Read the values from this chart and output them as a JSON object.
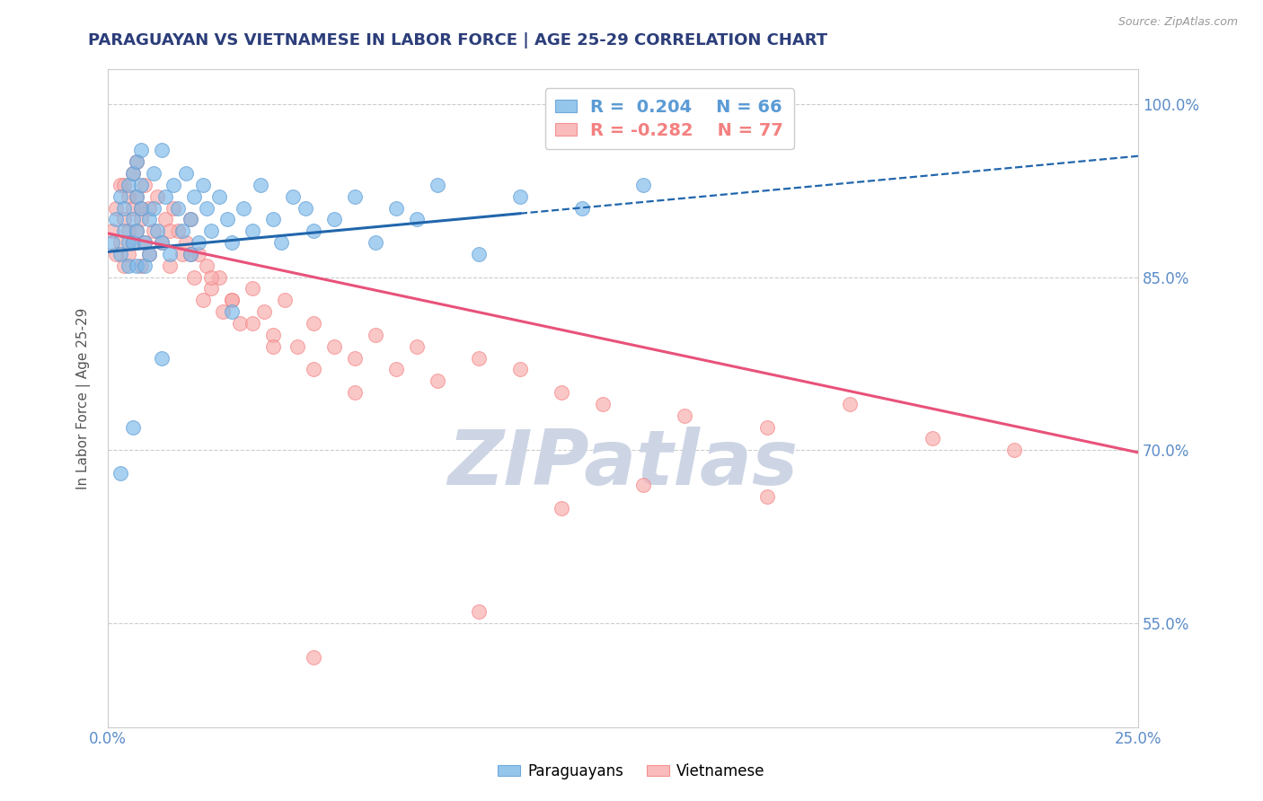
{
  "title": "PARAGUAYAN VS VIETNAMESE IN LABOR FORCE | AGE 25-29 CORRELATION CHART",
  "source_text": "Source: ZipAtlas.com",
  "ylabel": "In Labor Force | Age 25-29",
  "xlim": [
    0.0,
    0.25
  ],
  "ylim": [
    0.46,
    1.03
  ],
  "xticks": [
    0.0,
    0.05,
    0.1,
    0.15,
    0.2,
    0.25
  ],
  "xticklabels": [
    "0.0%",
    "",
    "",
    "",
    "",
    "25.0%"
  ],
  "yticks": [
    0.55,
    0.7,
    0.85,
    1.0
  ],
  "yticklabels": [
    "55.0%",
    "70.0%",
    "85.0%",
    "100.0%"
  ],
  "legend_entries": [
    {
      "label": "R =  0.204   N = 66",
      "color": "#5b9bd5"
    },
    {
      "label": "R = -0.282   N = 77",
      "color": "#f48080"
    }
  ],
  "paraguayan_color": "#7ab8e8",
  "paraguayan_edge": "#5b9bd5",
  "vietnamese_color": "#f8aaaa",
  "vietnamese_edge": "#f48080",
  "trend_blue_color": "#2166ac",
  "trend_pink_color": "#e8527a",
  "trend_blue_solid_end": 0.1,
  "trend_blue_x0": 0.0,
  "trend_blue_y0": 0.872,
  "trend_blue_x1": 0.25,
  "trend_blue_y1": 0.955,
  "trend_pink_x0": 0.0,
  "trend_pink_y0": 0.888,
  "trend_pink_x1": 0.25,
  "trend_pink_y1": 0.698,
  "watermark_text": "ZIPatlas",
  "watermark_color": "#cdd5e5",
  "background_color": "#ffffff",
  "grid_color": "#cccccc",
  "title_color": "#2c3e7a",
  "axis_label_color": "#555555",
  "tick_label_color": "#5b8cc8",
  "paraguayan_x": [
    0.001,
    0.002,
    0.003,
    0.003,
    0.004,
    0.004,
    0.005,
    0.005,
    0.005,
    0.006,
    0.006,
    0.006,
    0.007,
    0.007,
    0.007,
    0.007,
    0.008,
    0.008,
    0.008,
    0.009,
    0.009,
    0.01,
    0.01,
    0.011,
    0.011,
    0.012,
    0.013,
    0.013,
    0.014,
    0.015,
    0.016,
    0.017,
    0.018,
    0.019,
    0.02,
    0.02,
    0.021,
    0.022,
    0.023,
    0.024,
    0.025,
    0.027,
    0.029,
    0.03,
    0.033,
    0.035,
    0.037,
    0.04,
    0.042,
    0.045,
    0.048,
    0.05,
    0.055,
    0.06,
    0.065,
    0.07,
    0.075,
    0.08,
    0.09,
    0.1,
    0.115,
    0.13,
    0.03,
    0.013,
    0.006,
    0.003
  ],
  "paraguayan_y": [
    0.88,
    0.9,
    0.92,
    0.87,
    0.91,
    0.89,
    0.93,
    0.88,
    0.86,
    0.94,
    0.9,
    0.88,
    0.95,
    0.92,
    0.89,
    0.86,
    0.96,
    0.93,
    0.91,
    0.88,
    0.86,
    0.9,
    0.87,
    0.94,
    0.91,
    0.89,
    0.96,
    0.88,
    0.92,
    0.87,
    0.93,
    0.91,
    0.89,
    0.94,
    0.9,
    0.87,
    0.92,
    0.88,
    0.93,
    0.91,
    0.89,
    0.92,
    0.9,
    0.88,
    0.91,
    0.89,
    0.93,
    0.9,
    0.88,
    0.92,
    0.91,
    0.89,
    0.9,
    0.92,
    0.88,
    0.91,
    0.9,
    0.93,
    0.87,
    0.92,
    0.91,
    0.93,
    0.82,
    0.78,
    0.72,
    0.68
  ],
  "vietnamese_x": [
    0.001,
    0.002,
    0.002,
    0.003,
    0.003,
    0.004,
    0.004,
    0.005,
    0.005,
    0.005,
    0.006,
    0.006,
    0.006,
    0.007,
    0.007,
    0.007,
    0.008,
    0.008,
    0.009,
    0.009,
    0.01,
    0.01,
    0.011,
    0.012,
    0.013,
    0.014,
    0.015,
    0.016,
    0.017,
    0.018,
    0.019,
    0.02,
    0.021,
    0.022,
    0.023,
    0.024,
    0.025,
    0.027,
    0.028,
    0.03,
    0.032,
    0.035,
    0.038,
    0.04,
    0.043,
    0.046,
    0.05,
    0.055,
    0.06,
    0.065,
    0.07,
    0.075,
    0.08,
    0.09,
    0.1,
    0.11,
    0.12,
    0.14,
    0.16,
    0.18,
    0.2,
    0.22,
    0.13,
    0.16,
    0.025,
    0.03,
    0.035,
    0.04,
    0.05,
    0.06,
    0.02,
    0.015,
    0.008,
    0.004,
    0.09,
    0.11,
    0.05
  ],
  "vietnamese_y": [
    0.89,
    0.91,
    0.87,
    0.93,
    0.88,
    0.9,
    0.86,
    0.92,
    0.89,
    0.87,
    0.94,
    0.91,
    0.88,
    0.95,
    0.92,
    0.89,
    0.86,
    0.9,
    0.93,
    0.88,
    0.91,
    0.87,
    0.89,
    0.92,
    0.88,
    0.9,
    0.86,
    0.91,
    0.89,
    0.87,
    0.88,
    0.9,
    0.85,
    0.87,
    0.83,
    0.86,
    0.84,
    0.85,
    0.82,
    0.83,
    0.81,
    0.84,
    0.82,
    0.8,
    0.83,
    0.79,
    0.81,
    0.79,
    0.78,
    0.8,
    0.77,
    0.79,
    0.76,
    0.78,
    0.77,
    0.75,
    0.74,
    0.73,
    0.72,
    0.74,
    0.71,
    0.7,
    0.67,
    0.66,
    0.85,
    0.83,
    0.81,
    0.79,
    0.77,
    0.75,
    0.87,
    0.89,
    0.91,
    0.93,
    0.56,
    0.65,
    0.52
  ]
}
